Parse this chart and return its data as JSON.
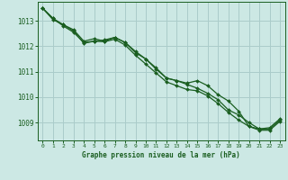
{
  "background_color": "#cce8e4",
  "grid_color": "#aaccca",
  "line_color": "#1a5e20",
  "marker_color": "#1a5e20",
  "title": "Graphe pression niveau de la mer (hPa)",
  "xlim": [
    -0.5,
    23.5
  ],
  "ylim": [
    1008.3,
    1013.75
  ],
  "yticks": [
    1009,
    1010,
    1011,
    1012,
    1013
  ],
  "xticks": [
    0,
    1,
    2,
    3,
    4,
    5,
    6,
    7,
    8,
    9,
    10,
    11,
    12,
    13,
    14,
    15,
    16,
    17,
    18,
    19,
    20,
    21,
    22,
    23
  ],
  "series1_x": [
    0,
    1,
    2,
    3,
    4,
    5,
    6,
    7,
    8,
    9,
    10,
    11,
    12,
    13,
    14,
    15,
    16,
    17,
    18,
    19,
    20,
    21,
    22,
    23
  ],
  "series1_y": [
    1013.5,
    1013.1,
    1012.8,
    1012.55,
    1012.15,
    1012.2,
    1012.25,
    1012.35,
    1012.15,
    1011.75,
    1011.5,
    1011.1,
    1010.75,
    1010.65,
    1010.55,
    1010.65,
    1010.45,
    1010.1,
    1009.85,
    1009.45,
    1008.85,
    1008.75,
    1008.8,
    1009.15
  ],
  "series2_x": [
    0,
    1,
    2,
    3,
    4,
    5,
    6,
    7,
    8,
    9,
    10,
    11,
    12,
    13,
    14,
    15,
    16,
    17,
    18,
    19,
    20,
    21,
    22,
    23
  ],
  "series2_y": [
    1013.5,
    1013.1,
    1012.85,
    1012.65,
    1012.2,
    1012.3,
    1012.2,
    1012.35,
    1012.15,
    1011.8,
    1011.5,
    1011.15,
    1010.75,
    1010.65,
    1010.5,
    1010.35,
    1010.15,
    1009.9,
    1009.5,
    1009.3,
    1009.0,
    1008.75,
    1008.75,
    1009.1
  ],
  "series3_x": [
    0,
    1,
    2,
    3,
    4,
    5,
    6,
    7,
    8,
    9,
    10,
    11,
    12,
    13,
    14,
    15,
    16,
    17,
    18,
    19,
    20,
    21,
    22,
    23
  ],
  "series3_y": [
    1013.5,
    1013.05,
    1012.85,
    1012.6,
    1012.12,
    1012.2,
    1012.18,
    1012.28,
    1012.05,
    1011.65,
    1011.3,
    1010.95,
    1010.6,
    1010.45,
    1010.3,
    1010.25,
    1010.05,
    1009.75,
    1009.4,
    1009.1,
    1008.85,
    1008.7,
    1008.7,
    1009.05
  ]
}
